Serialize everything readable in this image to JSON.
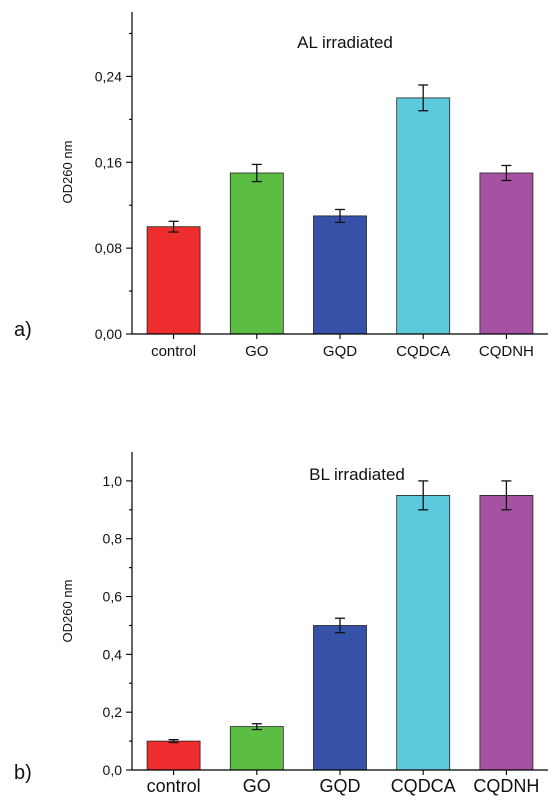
{
  "chart_data": [
    {
      "panel_label": "a)",
      "type": "bar",
      "title": "AL irradiated",
      "ylabel": "OD260 nm",
      "xlabel": "",
      "categories": [
        "control",
        "GO",
        "GQD",
        "CQDCA",
        "CQDNH"
      ],
      "values": [
        0.1,
        0.15,
        0.11,
        0.22,
        0.15
      ],
      "errors": [
        0.005,
        0.008,
        0.006,
        0.012,
        0.007
      ],
      "colors": [
        "#ee2e2e",
        "#5cbd45",
        "#3651a8",
        "#5cc9dd",
        "#a652a2"
      ],
      "ylim": [
        0,
        0.3
      ],
      "yticks": [
        0,
        0.08,
        0.16,
        0.24
      ],
      "ytick_labels": [
        "0,00",
        "0,08",
        "0,16",
        "0,24"
      ],
      "grid": false,
      "legend": "none"
    },
    {
      "panel_label": "b)",
      "type": "bar",
      "title": "BL irradiated",
      "ylabel": "OD260 nm",
      "xlabel": "",
      "categories": [
        "control",
        "GO",
        "GQD",
        "CQDCA",
        "CQDNH"
      ],
      "values": [
        0.1,
        0.15,
        0.5,
        0.95,
        0.95
      ],
      "errors": [
        0.005,
        0.01,
        0.025,
        0.05,
        0.05
      ],
      "colors": [
        "#ee2e2e",
        "#5cbd45",
        "#3651a8",
        "#5cc9dd",
        "#a652a2"
      ],
      "ylim": [
        0,
        1.1
      ],
      "yticks": [
        0,
        0.2,
        0.4,
        0.6,
        0.8,
        1.0
      ],
      "ytick_labels": [
        "0,0",
        "0,2",
        "0,4",
        "0,6",
        "0,8",
        "1,0"
      ],
      "grid": false,
      "legend": "none"
    }
  ]
}
